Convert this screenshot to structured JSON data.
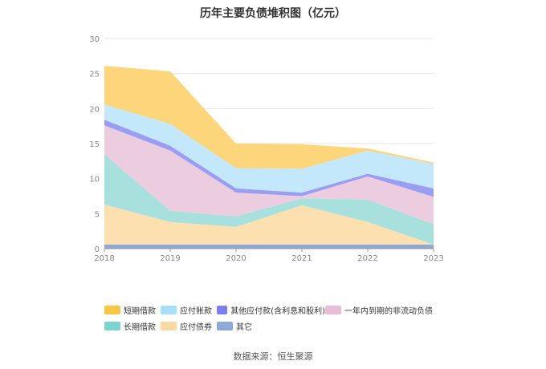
{
  "chart_data": {
    "type": "area",
    "stacked": true,
    "title": "历年主要负债堆积图（亿元）",
    "source": "数据来源：恒生聚源",
    "x": [
      "2018",
      "2019",
      "2020",
      "2021",
      "2022",
      "2023"
    ],
    "y_ticks": [
      "0",
      "5",
      "10",
      "15",
      "20",
      "25",
      "30"
    ],
    "ylim": [
      0,
      30
    ],
    "grid": true,
    "legend_position": "bottom",
    "series": [
      {
        "name": "其它",
        "color": "#8fa9d6",
        "values": [
          0.6,
          0.6,
          0.6,
          0.6,
          0.6,
          0.6
        ]
      },
      {
        "name": "应付债券",
        "color": "#fde0b0",
        "values": [
          5.7,
          3.2,
          2.5,
          5.6,
          3.2,
          0
        ]
      },
      {
        "name": "长期借款",
        "color": "#a7e0dd",
        "values": [
          7.2,
          1.6,
          1.5,
          1.0,
          3.2,
          2.9
        ]
      },
      {
        "name": "一年内到期的非流动负债",
        "color": "#eccde0",
        "values": [
          4.1,
          8.6,
          3.4,
          0.3,
          3.3,
          3.9
        ]
      },
      {
        "name": "其他应付款(含利息和股利)",
        "color": "#9a9ef2",
        "values": [
          0.8,
          0.7,
          0.6,
          0.5,
          0.4,
          1.2
        ]
      },
      {
        "name": "应付账款",
        "color": "#c3e8fb",
        "values": [
          2.2,
          3.1,
          2.9,
          3.4,
          3.3,
          3.5
        ]
      },
      {
        "name": "短期借款",
        "color": "#fdd57a",
        "values": [
          5.5,
          7.5,
          3.5,
          3.5,
          0.3,
          0.2
        ]
      }
    ],
    "legend": [
      [
        {
          "name": "短期借款",
          "color": "#fbc646"
        },
        {
          "name": "应付账款",
          "color": "#a8e0fb"
        },
        {
          "name": "其他应付款(含利息和股利)",
          "color": "#7b7ff0"
        },
        {
          "name": "一年内到期的非流动负债",
          "color": "#e8bcd7"
        }
      ],
      [
        {
          "name": "长期借款",
          "color": "#7dd3d0"
        },
        {
          "name": "应付债券",
          "color": "#fbd9a3"
        },
        {
          "name": "其它",
          "color": "#8fa9d6"
        }
      ]
    ]
  }
}
